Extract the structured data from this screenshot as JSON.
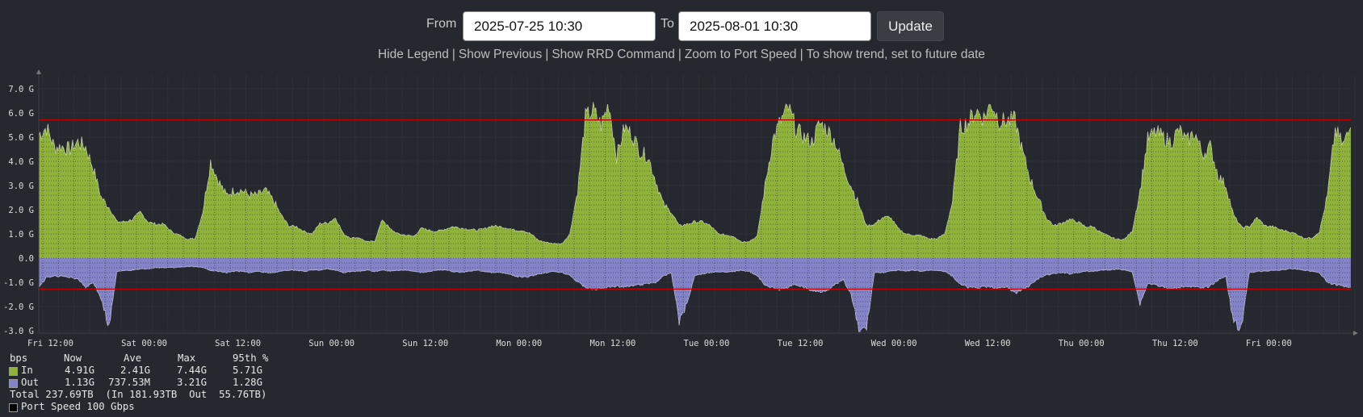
{
  "header": {
    "from_label": "From",
    "from_value": "2025-07-25 10:30",
    "to_label": "To",
    "to_value": "2025-08-01 10:30",
    "update_label": "Update"
  },
  "links": [
    {
      "label": "Hide Legend"
    },
    {
      "label": "Show Previous"
    },
    {
      "label": "Show RRD Command"
    },
    {
      "label": "Zoom to Port Speed"
    },
    {
      "label": "To show trend, set to future date"
    }
  ],
  "legend": {
    "headers": {
      "unit": "bps",
      "now": "Now",
      "ave": "Ave",
      "max": "Max",
      "p95": "95th %"
    },
    "rows": [
      {
        "name": "In",
        "now": "4.91G",
        "ave": "2.41G",
        "max": "7.44G",
        "p95": "5.71G",
        "color": "#8fb33a"
      },
      {
        "name": "Out",
        "now": "1.13G",
        "ave": "737.53M",
        "max": "3.21G",
        "p95": "1.28G",
        "color": "#8583c8"
      }
    ],
    "total": "Total 237.69TB  (In 181.93TB  Out  55.76TB)",
    "port_speed": "Port Speed 100 Gbps",
    "port_speed_color": "#000000"
  },
  "chart_data": {
    "type": "area",
    "title": "",
    "xlabel": "",
    "ylabel": "bps",
    "x_start": "2025-07-25 10:30",
    "x_step_hours": 1,
    "x_range_hours": [
      0,
      168
    ],
    "ylim": [
      -3.0,
      7.5
    ],
    "y_ticks": [
      7,
      6,
      5,
      4,
      3,
      2,
      1,
      0,
      -1,
      -2,
      -3
    ],
    "y_tick_labels": [
      "7.0 G",
      "6.0 G",
      "5.0 G",
      "4.0 G",
      "3.0 G",
      "2.0 G",
      "1.0 G",
      "0.0",
      "-1.0 G",
      "-2.0 G",
      "-3.0 G"
    ],
    "x_ticks_hours": [
      1.5,
      13.5,
      25.5,
      37.5,
      49.5,
      61.5,
      73.5,
      85.5,
      97.5,
      109.5,
      121.5,
      133.5,
      145.5,
      157.5
    ],
    "x_tick_labels": [
      "Fri 12:00",
      "Sat 00:00",
      "Sat 12:00",
      "Sun 00:00",
      "Sun 12:00",
      "Mon 00:00",
      "Mon 12:00",
      "Tue 00:00",
      "Tue 12:00",
      "Wed 00:00",
      "Wed 12:00",
      "Thu 00:00",
      "Thu 12:00",
      "Fri 00:00"
    ],
    "grid": true,
    "hrules": [
      {
        "name": "In 95th %",
        "value": 5.71,
        "color": "#c00000"
      },
      {
        "name": "Out 95th %",
        "value": -1.28,
        "color": "#c00000"
      }
    ],
    "series": [
      {
        "name": "In",
        "unit": "Gbps",
        "color": "#8fb33a",
        "values": [
          5.1,
          5.4,
          4.6,
          4.6,
          4.5,
          4.8,
          4.6,
          3.7,
          2.5,
          2.1,
          1.5,
          1.5,
          1.6,
          1.9,
          1.5,
          1.4,
          1.4,
          1.1,
          0.95,
          0.8,
          0.8,
          1.9,
          4.0,
          3.2,
          2.6,
          2.8,
          2.8,
          2.6,
          2.6,
          2.8,
          2.4,
          1.8,
          1.33,
          1.3,
          1.1,
          1.0,
          1.43,
          1.45,
          1.67,
          1.0,
          0.83,
          0.85,
          0.67,
          0.7,
          1.6,
          1.2,
          1.0,
          0.95,
          0.9,
          1.23,
          1.15,
          1.1,
          1.2,
          1.3,
          1.25,
          1.2,
          1.15,
          1.2,
          1.33,
          1.3,
          1.25,
          1.15,
          1.15,
          1.0,
          0.73,
          0.65,
          0.6,
          0.6,
          1.0,
          2.8,
          5.8,
          6.1,
          5.5,
          6.4,
          4.2,
          5.4,
          5.1,
          4.4,
          4.2,
          3.2,
          2.2,
          1.9,
          1.33,
          1.4,
          1.5,
          1.5,
          1.33,
          1.0,
          0.95,
          0.9,
          0.67,
          0.7,
          0.9,
          3.0,
          4.9,
          5.67,
          6.2,
          5.3,
          5.0,
          4.8,
          5.57,
          5.3,
          4.8,
          3.77,
          3.0,
          2.23,
          1.33,
          1.4,
          1.67,
          1.7,
          1.23,
          1.0,
          0.95,
          0.93,
          0.8,
          0.8,
          1.0,
          2.33,
          5.4,
          5.6,
          6.1,
          5.8,
          6.4,
          5.67,
          5.67,
          5.7,
          4.33,
          3.23,
          2.43,
          1.67,
          1.33,
          1.45,
          1.6,
          1.5,
          1.3,
          1.3,
          1.06,
          0.9,
          0.78,
          0.78,
          1.1,
          2.77,
          4.9,
          5.2,
          5.0,
          4.8,
          5.3,
          4.8,
          5.2,
          4.3,
          4.6,
          3.43,
          3.0,
          1.77,
          1.27,
          1.3,
          1.67,
          1.33,
          1.3,
          1.17,
          1.1,
          1.0,
          0.83,
          0.83,
          1.1,
          2.57,
          5.3,
          4.67,
          5.4
        ]
      },
      {
        "name": "Out",
        "unit": "Gbps",
        "color": "#8583c8",
        "values": [
          -1.25,
          -0.8,
          -0.75,
          -0.75,
          -0.8,
          -0.85,
          -1.2,
          -1.0,
          -1.7,
          -2.9,
          -0.55,
          -0.5,
          -0.5,
          -0.45,
          -0.45,
          -0.4,
          -0.4,
          -0.4,
          -0.38,
          -0.35,
          -0.35,
          -0.4,
          -0.5,
          -0.55,
          -0.6,
          -0.55,
          -0.55,
          -0.6,
          -0.55,
          -0.6,
          -0.6,
          -0.55,
          -0.5,
          -0.5,
          -0.55,
          -0.5,
          -0.5,
          -0.45,
          -0.5,
          -0.6,
          -0.55,
          -0.55,
          -0.5,
          -0.55,
          -0.5,
          -0.55,
          -0.5,
          -0.5,
          -0.55,
          -0.6,
          -0.55,
          -0.5,
          -0.5,
          -0.55,
          -0.6,
          -0.55,
          -0.5,
          -0.55,
          -0.6,
          -0.6,
          -0.65,
          -0.75,
          -0.8,
          -0.75,
          -0.65,
          -0.6,
          -0.55,
          -0.6,
          -0.7,
          -1.0,
          -1.2,
          -1.3,
          -1.25,
          -1.2,
          -1.15,
          -1.2,
          -1.15,
          -1.1,
          -1.05,
          -1.0,
          -0.75,
          -0.6,
          -2.6,
          -1.9,
          -0.7,
          -0.65,
          -0.6,
          -0.55,
          -0.6,
          -0.55,
          -0.5,
          -0.55,
          -0.75,
          -1.1,
          -1.25,
          -1.3,
          -1.2,
          -1.1,
          -1.2,
          -1.35,
          -1.4,
          -1.3,
          -1.1,
          -0.9,
          -1.5,
          -3.0,
          -2.9,
          -0.6,
          -0.6,
          -0.55,
          -0.5,
          -0.55,
          -0.5,
          -0.55,
          -0.5,
          -0.5,
          -0.55,
          -0.75,
          -1.1,
          -1.2,
          -1.25,
          -1.2,
          -1.2,
          -1.25,
          -1.2,
          -1.45,
          -1.3,
          -1.1,
          -0.85,
          -0.7,
          -0.65,
          -0.6,
          -0.65,
          -0.6,
          -0.55,
          -0.55,
          -0.5,
          -0.5,
          -0.45,
          -0.5,
          -0.55,
          -1.9,
          -1.05,
          -1.1,
          -1.2,
          -1.3,
          -1.2,
          -1.15,
          -1.2,
          -1.25,
          -1.15,
          -0.9,
          -0.75,
          -2.7,
          -2.9,
          -0.6,
          -0.55,
          -0.55,
          -0.5,
          -0.5,
          -0.45,
          -0.45,
          -0.5,
          -0.55,
          -0.6,
          -1.0,
          -1.1,
          -1.15,
          -1.2
        ]
      }
    ]
  }
}
